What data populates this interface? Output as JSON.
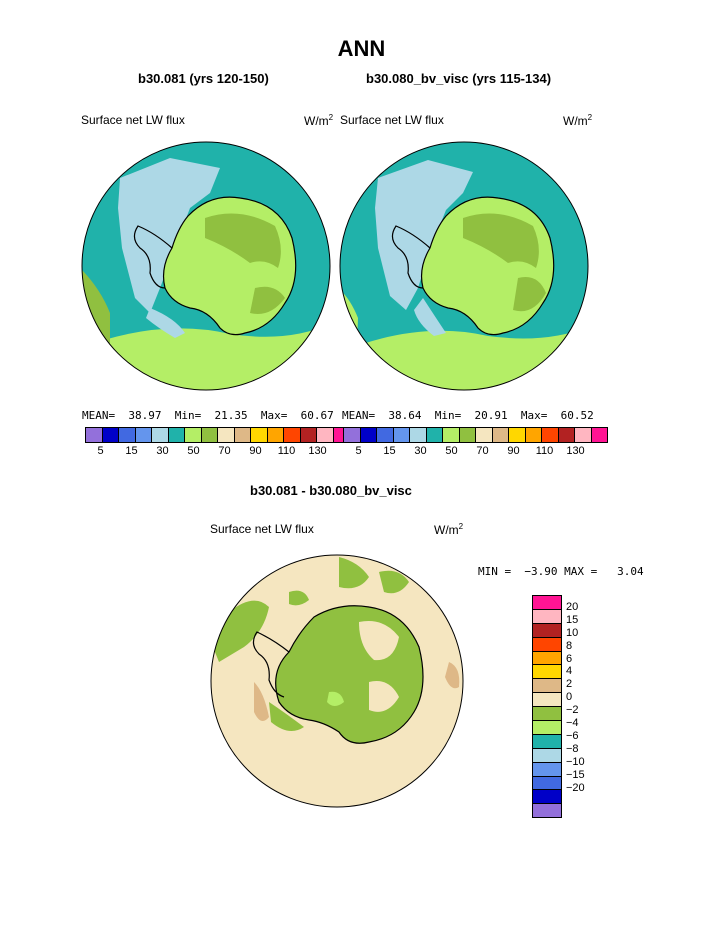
{
  "title": "ANN",
  "panels": [
    {
      "subtitle": "b30.081 (yrs 120-150)",
      "variable": "Surface net LW flux",
      "units_base": "W/m",
      "units_exp": "2",
      "stats": {
        "mean_label": "MEAN=",
        "mean": "38.97",
        "min_label": "Min=",
        "min": "21.35",
        "max_label": "Max=",
        "max": "60.67"
      }
    },
    {
      "subtitle": "b30.080_bv_visc (yrs 115-134)",
      "variable": "Surface net LW flux",
      "units_base": "W/m",
      "units_exp": "2",
      "stats": {
        "mean_label": "MEAN=",
        "mean": "38.64",
        "min_label": "Min=",
        "min": "20.91",
        "max_label": "Max=",
        "max": "60.52"
      }
    }
  ],
  "abs_colorbar": {
    "colors": [
      "#9370db",
      "#0000c8",
      "#4169e1",
      "#6495ed",
      "#add8e6",
      "#20b2aa",
      "#b4ee66",
      "#90c040",
      "#f5e6c0",
      "#deb887",
      "#ffd700",
      "#ffa500",
      "#ff4500",
      "#b22222",
      "#ffb6c1",
      "#ff1493"
    ],
    "labels": [
      "5",
      "15",
      "30",
      "50",
      "70",
      "90",
      "110",
      "130"
    ]
  },
  "diff": {
    "subtitle": "b30.081 - b30.080_bv_visc",
    "variable": "Surface net LW flux",
    "units_base": "W/m",
    "units_exp": "2",
    "stats": {
      "min_label": "MIN =",
      "min": "−3.90",
      "max_label": "MAX =",
      "max": "3.04"
    },
    "colorbar": {
      "colors": [
        "#ff1493",
        "#ffb6c1",
        "#b22222",
        "#ff4500",
        "#ffa500",
        "#ffd700",
        "#deb887",
        "#f5e6c0",
        "#90c040",
        "#b4ee66",
        "#20b2aa",
        "#add8e6",
        "#6495ed",
        "#4169e1",
        "#0000c8",
        "#9370db"
      ],
      "labels": [
        "20",
        "15",
        "10",
        "8",
        "6",
        "4",
        "2",
        "0",
        "−2",
        "−4",
        "−6",
        "−8",
        "−10",
        "−15",
        "−20"
      ]
    }
  },
  "colors": {
    "ocean_teal": "#20b2aa",
    "light_blue": "#add8e6",
    "light_green": "#b4ee66",
    "olive_green": "#90c040",
    "tan_light": "#f5e6c0",
    "tan": "#deb887"
  }
}
